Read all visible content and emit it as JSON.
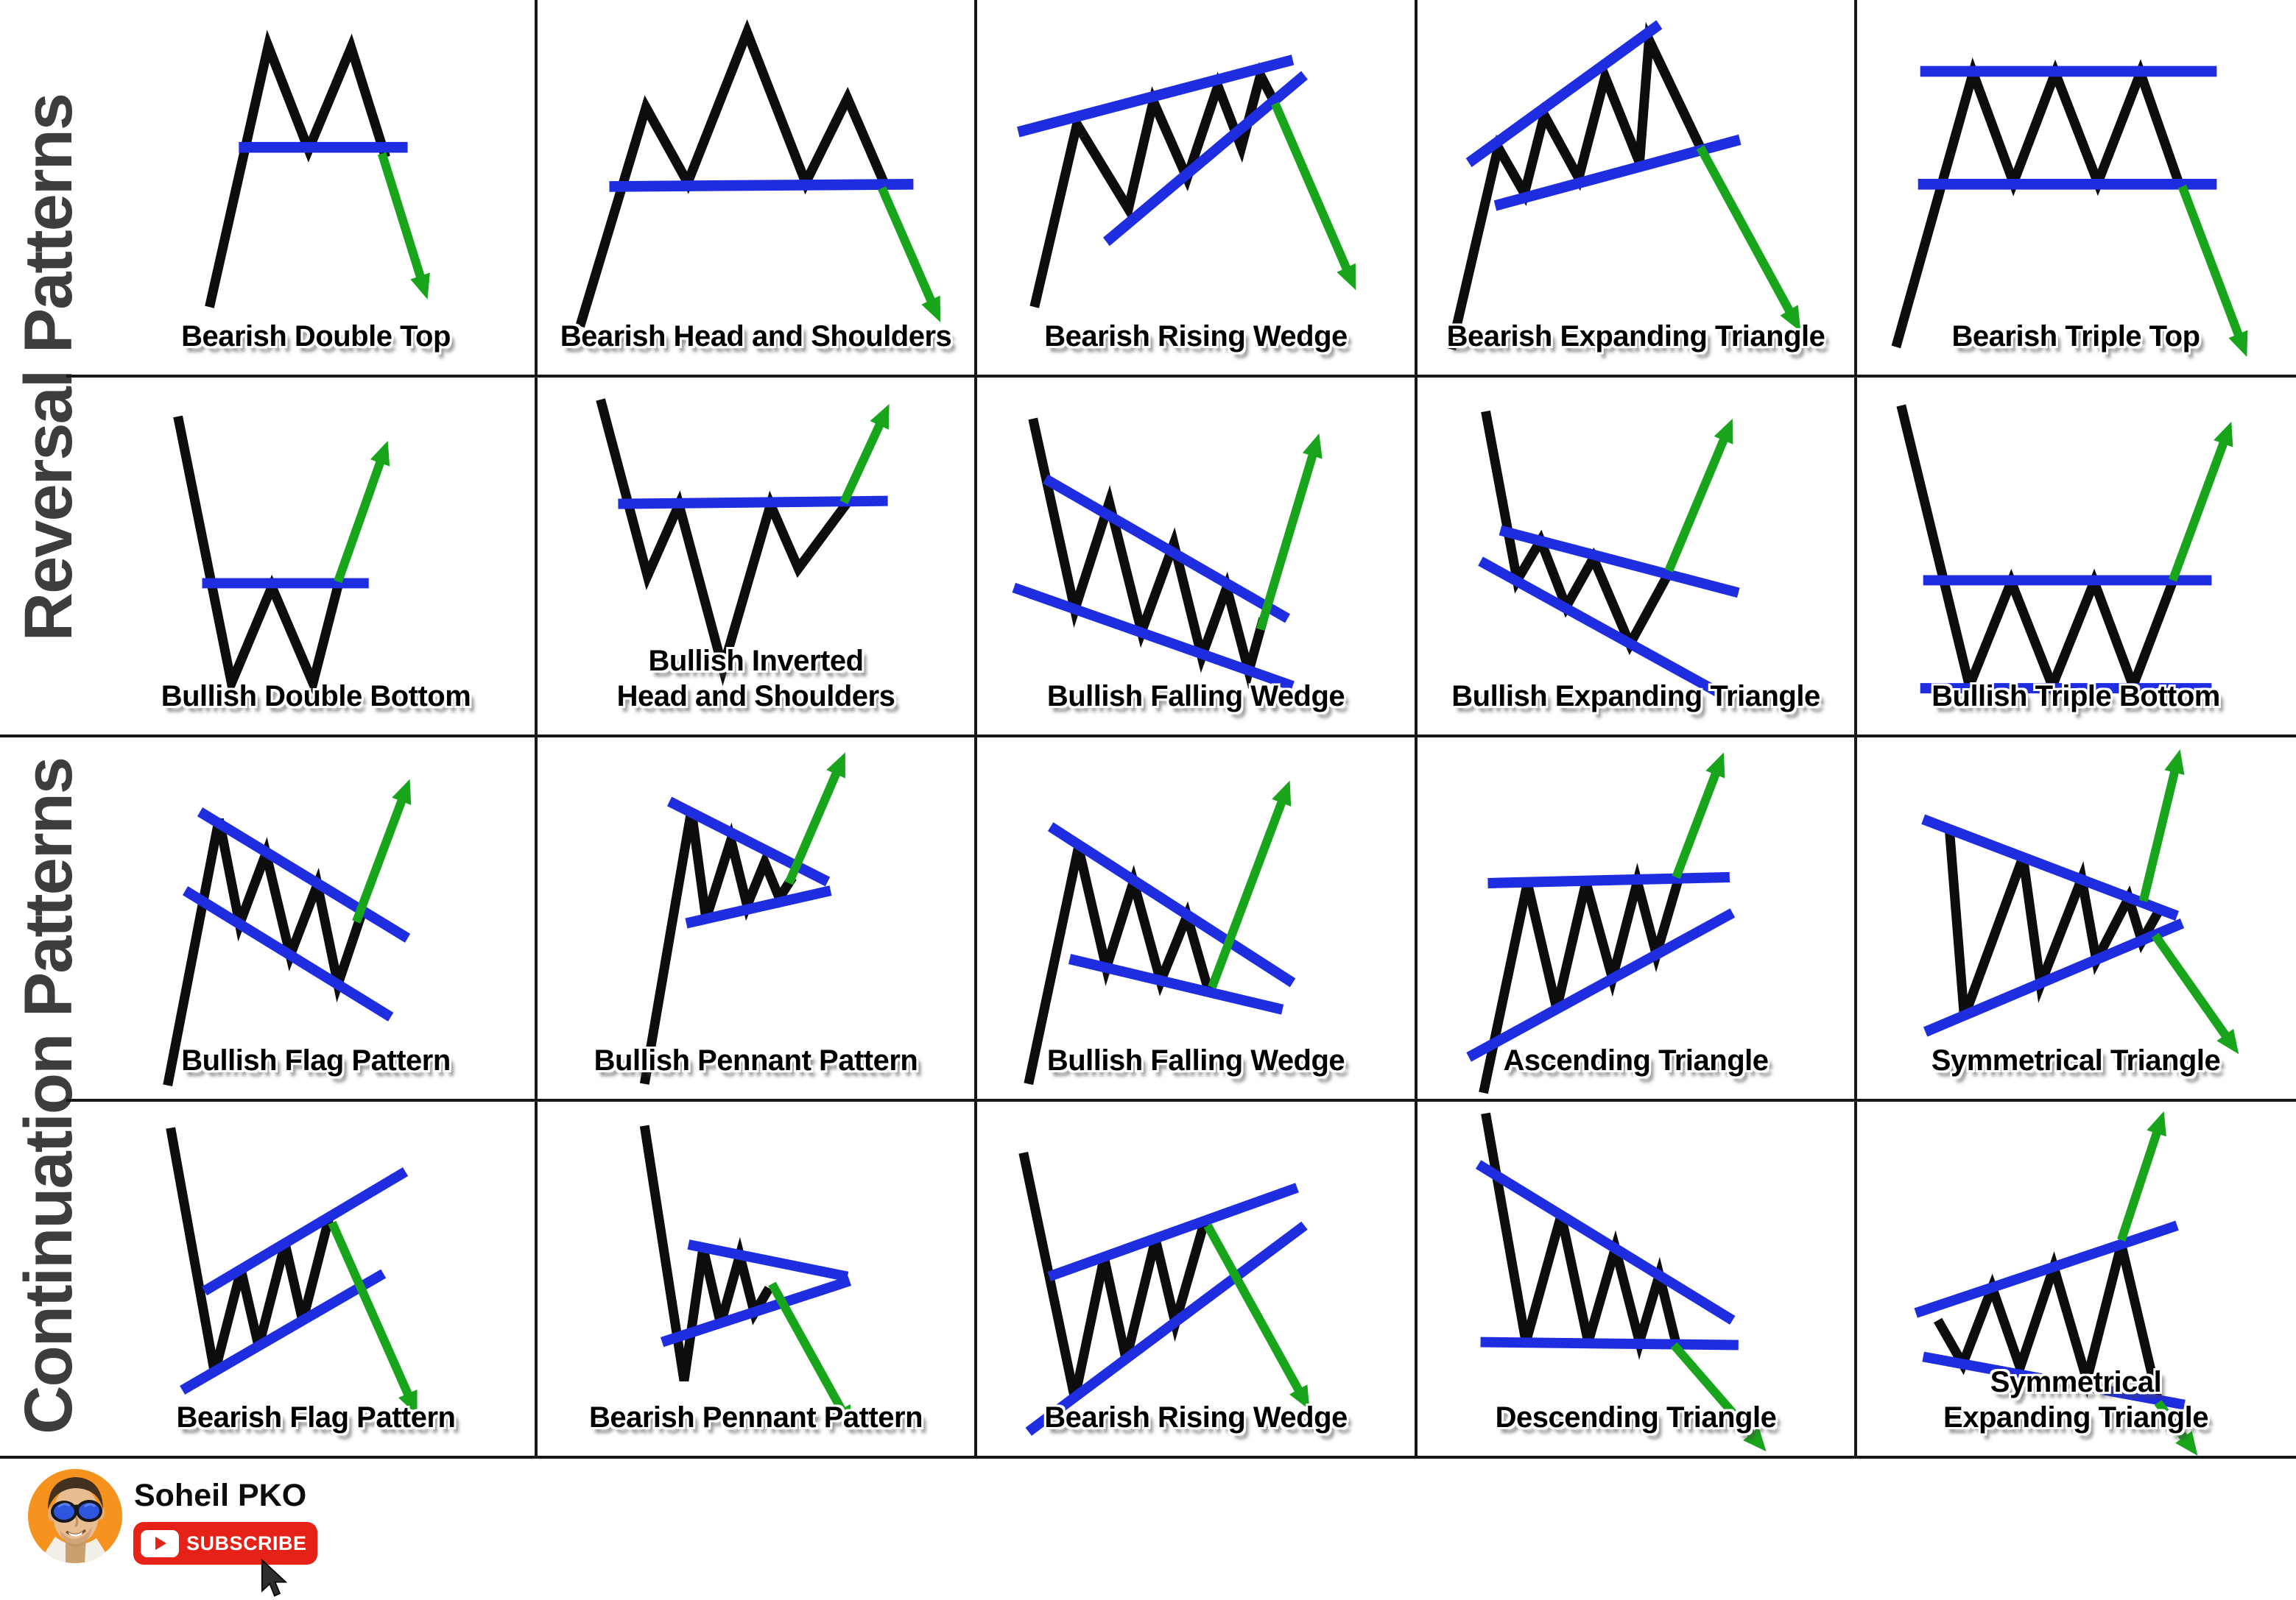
{
  "sections": [
    {
      "label": "Reversal Patterns"
    },
    {
      "label": "Continuation Patterns"
    }
  ],
  "patterns": [
    {
      "label": "Bearish Double Top",
      "section": "Reversal Patterns",
      "breakout": "down"
    },
    {
      "label": "Bearish Head and Shoulders",
      "section": "Reversal Patterns",
      "breakout": "down"
    },
    {
      "label": "Bearish Rising Wedge",
      "section": "Reversal Patterns",
      "breakout": "down"
    },
    {
      "label": "Bearish Expanding Triangle",
      "section": "Reversal Patterns",
      "breakout": "down"
    },
    {
      "label": "Bearish Triple Top",
      "section": "Reversal Patterns",
      "breakout": "down"
    },
    {
      "label": "Bullish Double Bottom",
      "section": "Reversal Patterns",
      "breakout": "up"
    },
    {
      "label": "Bullish Inverted\nHead and Shoulders",
      "section": "Reversal Patterns",
      "breakout": "up"
    },
    {
      "label": "Bullish Falling Wedge",
      "section": "Reversal Patterns",
      "breakout": "up"
    },
    {
      "label": "Bullish Expanding Triangle",
      "section": "Reversal Patterns",
      "breakout": "up"
    },
    {
      "label": "Bullish Triple Bottom",
      "section": "Reversal Patterns",
      "breakout": "up"
    },
    {
      "label": "Bullish Flag Pattern",
      "section": "Continuation Patterns",
      "breakout": "up"
    },
    {
      "label": "Bullish Pennant Pattern",
      "section": "Continuation Patterns",
      "breakout": "up"
    },
    {
      "label": "Bullish Falling Wedge",
      "section": "Continuation Patterns",
      "breakout": "up"
    },
    {
      "label": "Ascending Triangle",
      "section": "Continuation Patterns",
      "breakout": "up"
    },
    {
      "label": "Symmetrical Triangle",
      "section": "Continuation Patterns",
      "breakout": "both"
    },
    {
      "label": "Bearish Flag Pattern",
      "section": "Continuation Patterns",
      "breakout": "down"
    },
    {
      "label": "Bearish Pennant Pattern",
      "section": "Continuation Patterns",
      "breakout": "down"
    },
    {
      "label": "Bearish Rising Wedge",
      "section": "Continuation Patterns",
      "breakout": "down"
    },
    {
      "label": "Descending Triangle",
      "section": "Continuation Patterns",
      "breakout": "down"
    },
    {
      "label": "Symmetrical\nExpanding Triangle",
      "section": "Continuation Patterns",
      "breakout": "both"
    }
  ],
  "branding": {
    "channel_name": "Soheil PKO",
    "subscribe_label": "SUBSCRIBE"
  },
  "colors": {
    "trendline_blue": "#1f2de0",
    "arrow_green": "#18a51c",
    "line_black": "#0d0d0d",
    "sidebar_text": "#3d3d3d",
    "subscribe_red": "#e62117",
    "avatar_orange": "#f6921e"
  }
}
